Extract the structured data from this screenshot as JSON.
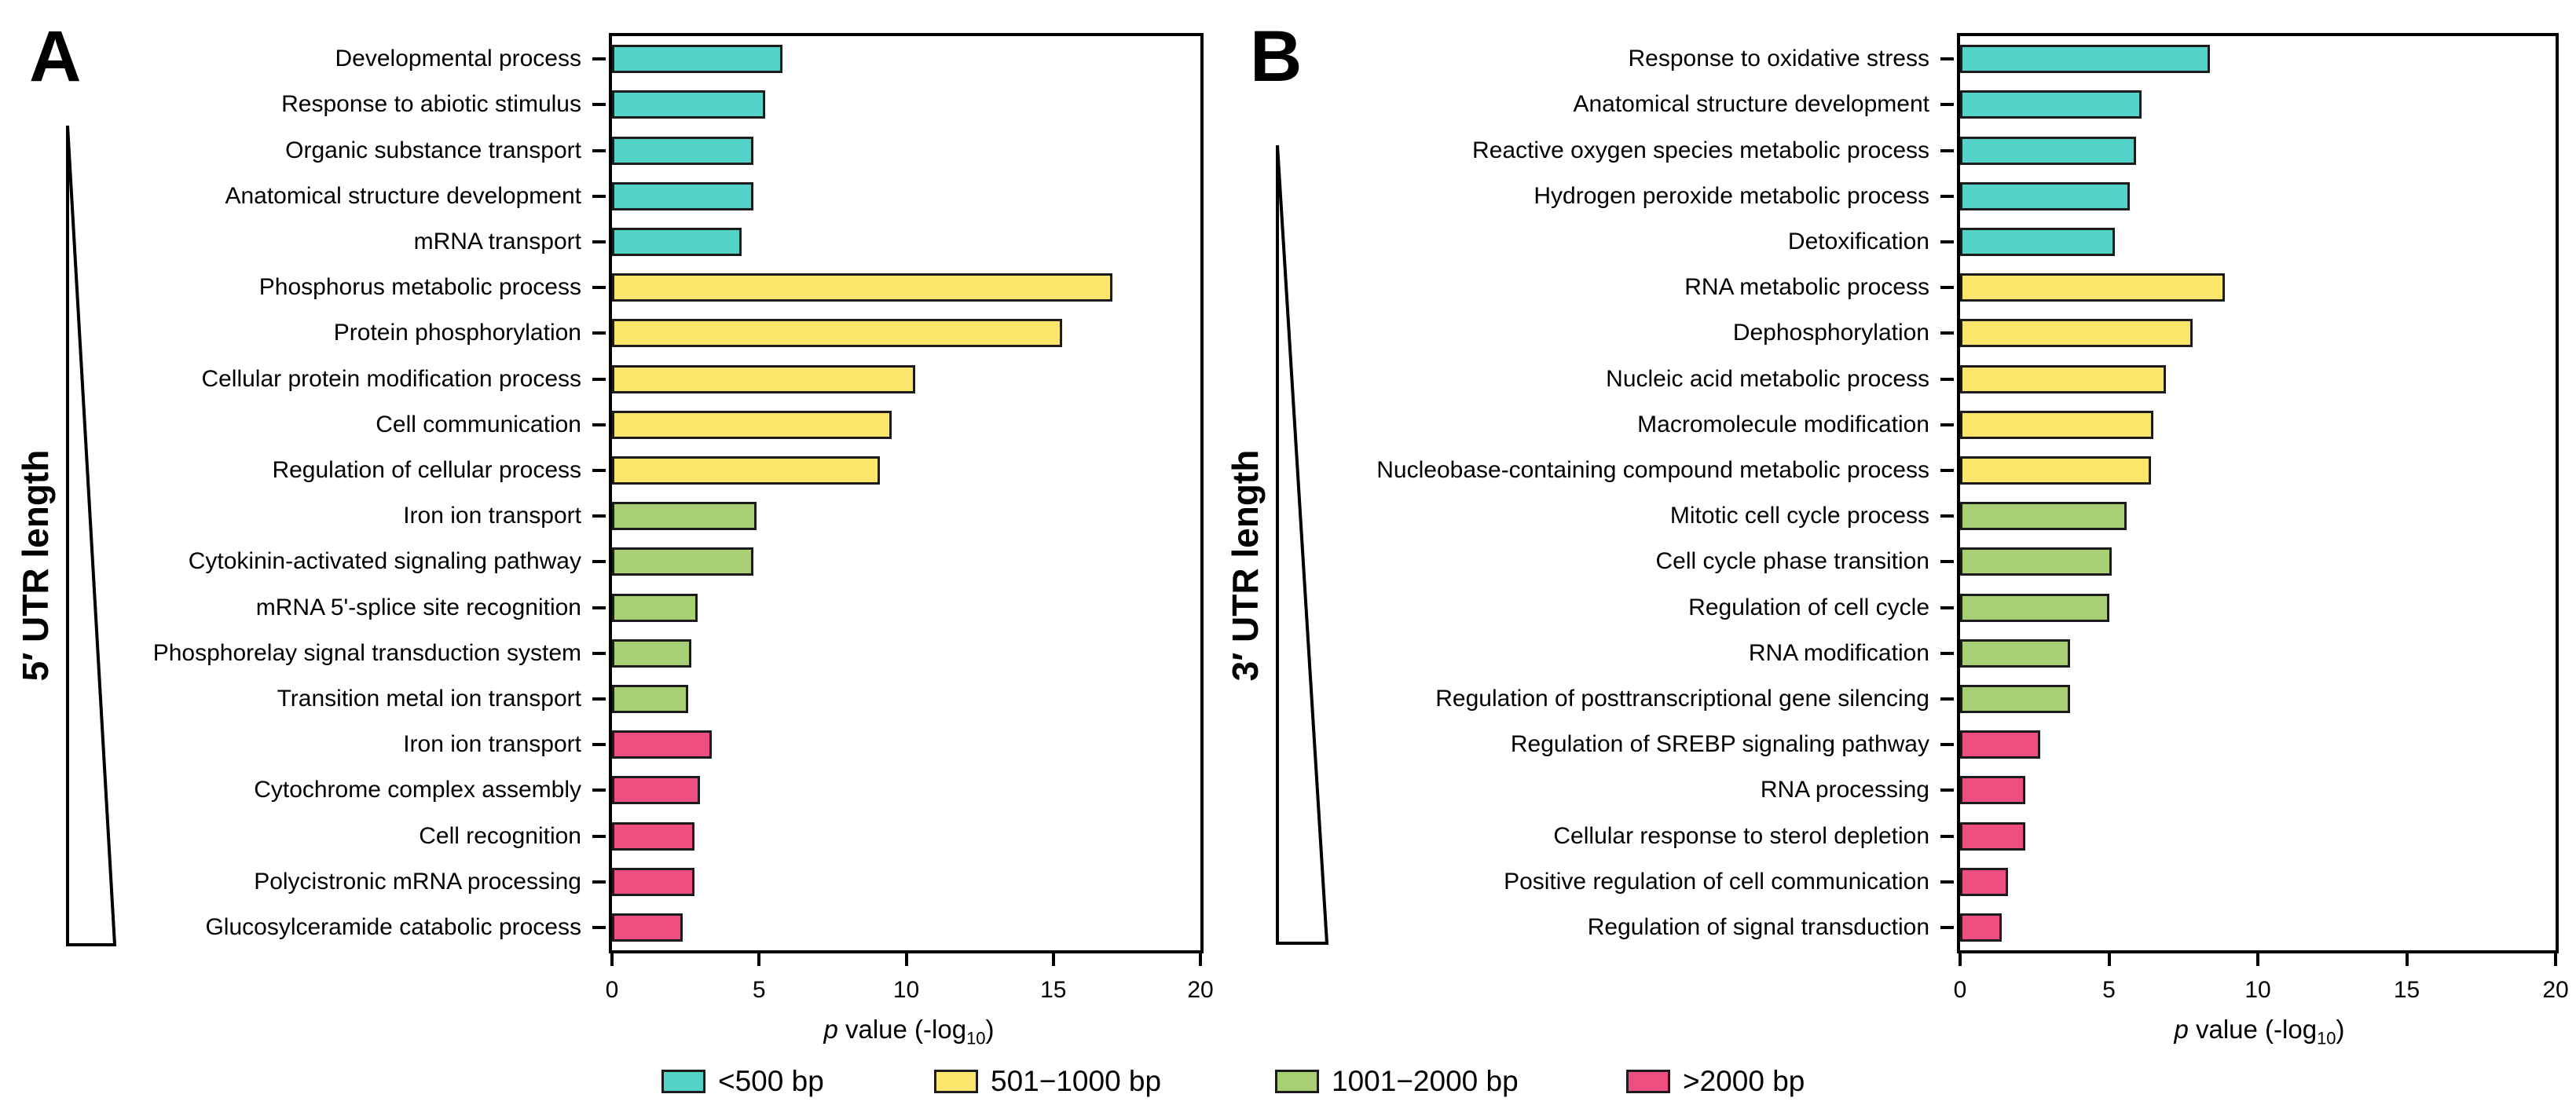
{
  "axis_label": {
    "pre": "p",
    "mid": " value (-log",
    "sub": "10",
    "post": ")"
  },
  "legend": {
    "position": "bottom",
    "entries": [
      {
        "label": "<500 bp",
        "color": "#55D2C8"
      },
      {
        "label": "501−1000 bp",
        "color": "#FBE56A"
      },
      {
        "label": "1001−2000 bp",
        "color": "#A9CF74"
      },
      {
        "label": ">2000 bp",
        "color": "#EF4F80"
      }
    ]
  },
  "chart_data": [
    {
      "type": "bar",
      "orientation": "horizontal",
      "panel": "A",
      "ylabel": "5′ UTR length",
      "xlabel": "p value (-log10)",
      "xlim": [
        0,
        20
      ],
      "xticks": [
        0,
        5,
        10,
        15,
        20
      ],
      "grid": false,
      "categories": [
        "Developmental process",
        "Response to abiotic stimulus",
        "Organic substance transport",
        "Anatomical structure development",
        "mRNA transport",
        "Phosphorus metabolic process",
        "Protein phosphorylation",
        "Cellular protein modification process",
        "Cell communication",
        "Regulation of cellular process",
        "Iron ion transport",
        "Cytokinin-activated signaling pathway",
        "mRNA 5'-splice site recognition",
        "Phosphorelay signal transduction system",
        "Transition metal ion transport",
        "Iron ion transport",
        "Cytochrome complex assembly",
        "Cell recognition",
        "Polycistronic mRNA processing",
        "Glucosylceramide catabolic process"
      ],
      "values": [
        5.8,
        5.2,
        4.8,
        4.8,
        4.4,
        17.0,
        15.3,
        10.3,
        9.5,
        9.1,
        4.9,
        4.8,
        2.9,
        2.7,
        2.6,
        3.4,
        3.0,
        2.8,
        2.8,
        2.4
      ],
      "groups": [
        "<500 bp",
        "<500 bp",
        "<500 bp",
        "<500 bp",
        "<500 bp",
        "501−1000 bp",
        "501−1000 bp",
        "501−1000 bp",
        "501−1000 bp",
        "501−1000 bp",
        "1001−2000 bp",
        "1001−2000 bp",
        "1001−2000 bp",
        "1001−2000 bp",
        "1001−2000 bp",
        ">2000 bp",
        ">2000 bp",
        ">2000 bp",
        ">2000 bp",
        ">2000 bp"
      ]
    },
    {
      "type": "bar",
      "orientation": "horizontal",
      "panel": "B",
      "ylabel": "3′ UTR length",
      "xlabel": "p value (-log10)",
      "xlim": [
        0,
        20
      ],
      "xticks": [
        0,
        5,
        10,
        15,
        20
      ],
      "grid": false,
      "categories": [
        "Response to oxidative stress",
        "Anatomical structure development",
        "Reactive oxygen species metabolic process",
        "Hydrogen peroxide metabolic process",
        "Detoxification",
        "RNA metabolic process",
        "Dephosphorylation",
        "Nucleic acid metabolic process",
        "Macromolecule modification",
        "Nucleobase-containing compound metabolic process",
        "Mitotic cell cycle process",
        "Cell cycle phase transition",
        "Regulation of cell cycle",
        "RNA modification",
        "Regulation of posttranscriptional gene silencing",
        "Regulation of SREBP signaling pathway",
        "RNA processing",
        "Cellular response to sterol depletion",
        "Positive regulation of cell communication",
        "Regulation of signal transduction"
      ],
      "values": [
        8.4,
        6.1,
        5.9,
        5.7,
        5.2,
        8.9,
        7.8,
        6.9,
        6.5,
        6.4,
        5.6,
        5.1,
        5.0,
        3.7,
        3.7,
        2.7,
        2.2,
        2.2,
        1.6,
        1.4
      ],
      "groups": [
        "<500 bp",
        "<500 bp",
        "<500 bp",
        "<500 bp",
        "<500 bp",
        "501−1000 bp",
        "501−1000 bp",
        "501−1000 bp",
        "501−1000 bp",
        "501−1000 bp",
        "1001−2000 bp",
        "1001−2000 bp",
        "1001−2000 bp",
        "1001−2000 bp",
        "1001−2000 bp",
        ">2000 bp",
        ">2000 bp",
        ">2000 bp",
        ">2000 bp",
        ">2000 bp"
      ]
    }
  ]
}
